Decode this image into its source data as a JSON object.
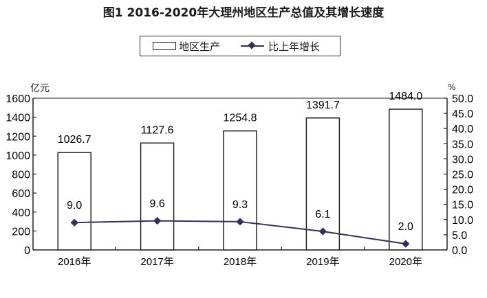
{
  "title": "图1  2016-2020年大理州地区生产总值及其增长速度",
  "legend": {
    "bar_label": "地区生产",
    "line_label": "比上年增长"
  },
  "axes": {
    "left_unit": "亿元",
    "right_unit": "%"
  },
  "colors": {
    "bar_fill": "#ffffff",
    "bar_stroke": "#222222",
    "line": "#3a2d5e",
    "axis": "#222222"
  },
  "chart_data": {
    "type": "bar",
    "title": "图1  2016-2020年大理州地区生产总值及其增长速度",
    "categories": [
      "2016年",
      "2017年",
      "2018年",
      "2019年",
      "2020年"
    ],
    "series": [
      {
        "name": "地区生产",
        "type": "bar",
        "axis": "left",
        "values": [
          1026.7,
          1127.6,
          1254.8,
          1391.7,
          1484.0
        ],
        "labels": [
          "1026.7",
          "1127.6",
          "1254.8",
          "1391.7",
          "1484.0"
        ]
      },
      {
        "name": "比上年增长",
        "type": "line",
        "axis": "right",
        "values": [
          9.0,
          9.6,
          9.3,
          6.1,
          2.0
        ],
        "labels": [
          "9.0",
          "9.6",
          "9.3",
          "6.1",
          "2.0"
        ]
      }
    ],
    "ylabel": "亿元",
    "y2label": "%",
    "ylim": [
      0,
      1600
    ],
    "y2lim": [
      0,
      50
    ],
    "yticks": [
      "0",
      "200",
      "400",
      "600",
      "800",
      "1000",
      "1200",
      "1400",
      "1600"
    ],
    "y2ticks": [
      "0.0",
      "5.0",
      "10.0",
      "15.0",
      "20.0",
      "25.0",
      "30.0",
      "35.0",
      "40.0",
      "45.0",
      "50.0"
    ],
    "grid": false,
    "legend_position": "top"
  }
}
